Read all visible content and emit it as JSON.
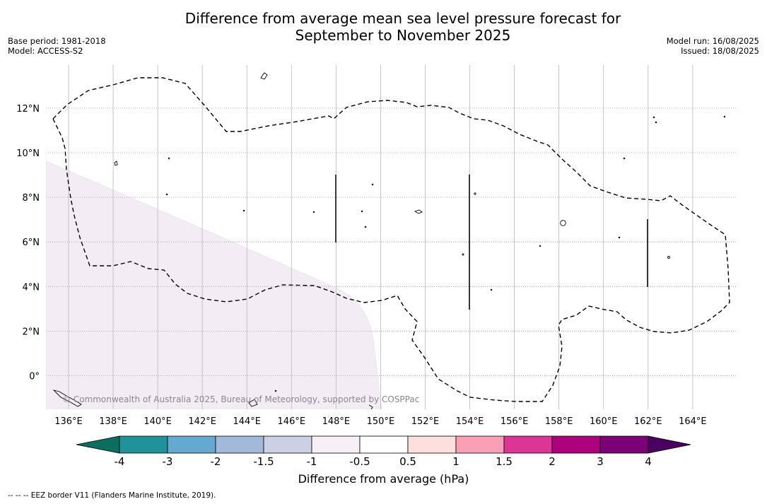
{
  "title_line1": "Difference from average mean sea level pressure forecast for",
  "title_line2": "September to November 2025",
  "base_period": "Base period: 1981-2018",
  "model": "Model: ACCESS-S2",
  "model_run": "Model run: 16/08/2025",
  "issued": "Issued: 18/08/2025",
  "copyright": "© Commonwealth of Australia 2025, Bureau of Meteorology, supported by COSPPac",
  "footnote": "--  --  -- EEZ border V11 (Flanders Marine Institute, 2019).",
  "colors": {
    "c_lt_m4": "#0b6e5f",
    "c_m4_m3": "#20929a",
    "c_m3_m2": "#65a8d0",
    "c_m2_m15": "#a4b9d9",
    "c_m15_m1": "#cdd0e5",
    "c_m1_m05": "#f6eff6",
    "c_m05_05": "#ffffff",
    "c_05_1": "#fde0dd",
    "c_1_15": "#f99fb6",
    "c_15_2": "#dd3596",
    "c_2_3": "#ad017d",
    "c_3_4": "#7a0176",
    "c_gt_4": "#4a0060"
  },
  "chart_data": {
    "type": "map",
    "projection": "equirectangular",
    "lon_range": [
      135,
      166
    ],
    "lat_range": [
      -1.5,
      14
    ],
    "lon_ticks": [
      "136°E",
      "138°E",
      "140°E",
      "142°E",
      "144°E",
      "146°E",
      "148°E",
      "150°E",
      "152°E",
      "154°E",
      "156°E",
      "158°E",
      "160°E",
      "162°E",
      "164°E"
    ],
    "lat_ticks": [
      "12°N",
      "10°N",
      "8°N",
      "6°N",
      "4°N",
      "2°N",
      "0°"
    ],
    "grid": true,
    "colorbar": {
      "label": "Difference from average (hPa)",
      "boundaries": [
        "-4",
        "-3",
        "-2",
        "-1.5",
        "-1",
        "-0.5",
        "0.5",
        "1",
        "1.5",
        "2",
        "3",
        "4"
      ],
      "extend": "both",
      "orientation": "horizontal",
      "placement": "bottom"
    },
    "shaded_regions": [
      {
        "range": "-1 to -0.5 hPa",
        "color": "#f3ecf4",
        "area": "south-west of map"
      }
    ],
    "eez_border": "dashed black outline"
  }
}
